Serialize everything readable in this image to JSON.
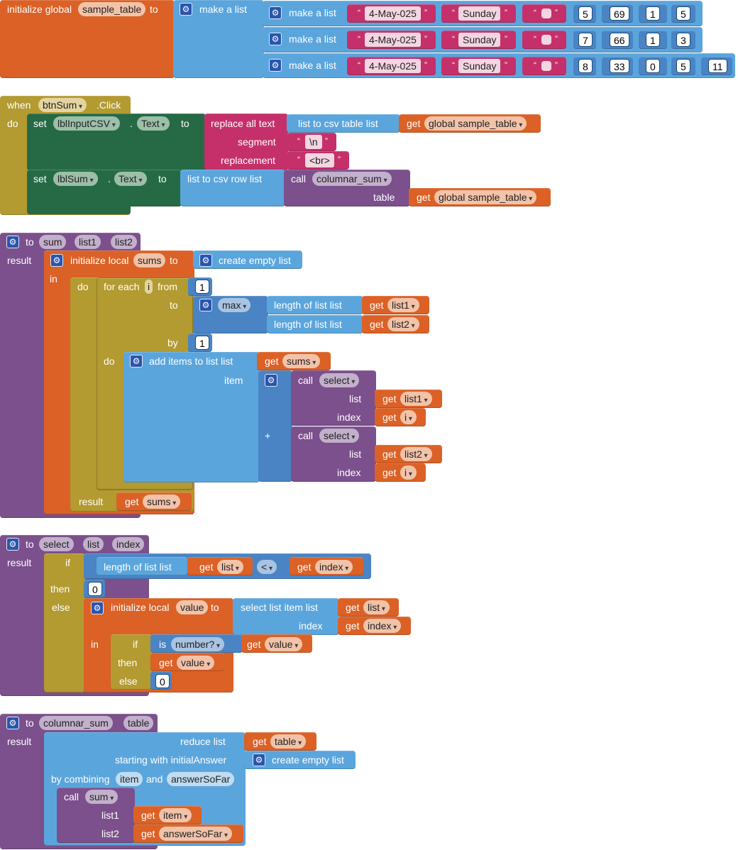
{
  "colors": {
    "orange": "#db6126",
    "lightblue": "#5ba5dd",
    "mediumblue": "#4a84c4",
    "pink": "#c5306a",
    "olive": "#b39a31",
    "darkgreen": "#266a45",
    "purple": "#7b508c",
    "lists": "#5ba5dd"
  },
  "icons": {
    "mutator": "gear-icon",
    "dropdown": "chevron-down-icon"
  },
  "global": {
    "label": "initialize global",
    "name": "sample_table",
    "to": "to",
    "make_list": "make a list",
    "rows": [
      {
        "label": "make a list",
        "date": "4-May-025",
        "day": "Sunday",
        "nums": [
          "5",
          "69",
          "1",
          "5"
        ]
      },
      {
        "label": "make a list",
        "date": "4-May-025",
        "day": "Sunday",
        "nums": [
          "7",
          "66",
          "1",
          "3"
        ]
      },
      {
        "label": "make a list",
        "date": "4-May-025",
        "day": "Sunday",
        "nums": [
          "8",
          "33",
          "0",
          "5",
          "11"
        ]
      }
    ]
  },
  "event": {
    "when": "when",
    "component": "btnSum",
    "event": ".Click",
    "do": "do",
    "set1": {
      "set": "set",
      "comp": "lblInputCSV",
      "dot": ".",
      "prop": "Text",
      "to": "to",
      "replace": "replace all text",
      "segment": "segment",
      "replacement": "replacement",
      "seg_val": "\\n",
      "rep_val": "<br>",
      "csv_table": "list to csv table  list",
      "get": "get",
      "var": "global sample_table"
    },
    "set2": {
      "set": "set",
      "comp": "lblSum",
      "dot": ".",
      "prop": "Text",
      "to": "to",
      "csv_row": "list to csv row  list",
      "call": "call",
      "proc": "columnar_sum",
      "table": "table",
      "get": "get",
      "var": "global sample_table"
    }
  },
  "sum": {
    "to": "to",
    "name": "sum",
    "p1": "list1",
    "p2": "list2",
    "result": "result",
    "init_local": "initialize local",
    "local": "sums",
    "to2": "to",
    "empty": "create empty list",
    "in": "in",
    "do": "do",
    "foreach": "for each",
    "i": "i",
    "from": "from",
    "from_val": "1",
    "to3": "to",
    "max": "max",
    "length1": "length of list  list",
    "get": "get",
    "l1": "list1",
    "l2": "list2",
    "by": "by",
    "by_val": "1",
    "do2": "do",
    "add": "add items to list  list",
    "sums": "sums",
    "item": "item",
    "call": "call",
    "select": "select",
    "list": "list",
    "index": "index",
    "iv": "i",
    "plus": "+",
    "result2": "result"
  },
  "select": {
    "to": "to",
    "name": "select",
    "p1": "list",
    "p2": "index",
    "result": "result",
    "if": "if",
    "length": "length of list  list",
    "get": "get",
    "list": "list",
    "lt": "<",
    "index": "index",
    "then": "then",
    "zero": "0",
    "else": "else",
    "init_local": "initialize local",
    "value": "value",
    "to2": "to",
    "select_item": "select list item  list",
    "index_lbl": "index",
    "in": "in",
    "if2": "if",
    "is": "is",
    "isnum": "number?",
    "then2": "then",
    "else2": "else",
    "zero2": "0"
  },
  "colsum": {
    "to": "to",
    "name": "columnar_sum",
    "p1": "table",
    "result": "result",
    "reduce": "reduce  list",
    "get": "get",
    "table": "table",
    "starting": "starting with initialAnswer",
    "empty": "create empty list",
    "combining": "by combining",
    "item": "item",
    "and": "and",
    "answer": "answerSoFar",
    "call": "call",
    "proc": "sum",
    "list1": "list1",
    "list2": "list2"
  }
}
